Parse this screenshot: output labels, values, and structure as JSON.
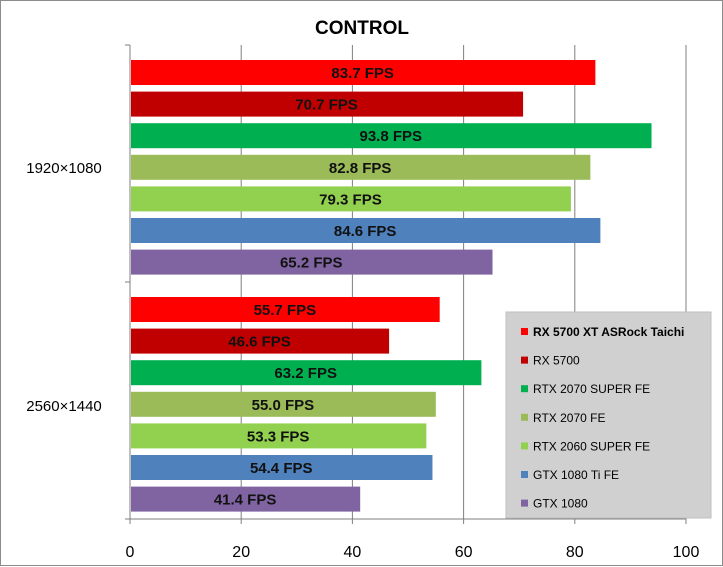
{
  "chart_data": {
    "type": "bar",
    "orientation": "horizontal",
    "title": "CONTROL",
    "categories": [
      "1920×1080",
      "2560×1440"
    ],
    "xlim": [
      0,
      100
    ],
    "x_ticks": [
      0,
      20,
      40,
      60,
      80,
      100
    ],
    "grid": "vertical",
    "legend_position": "right",
    "value_suffix": " FPS",
    "series": [
      {
        "name": "RX 5700 XT ASRock Taichi",
        "color": "#ff0000",
        "values": [
          83.7,
          55.7
        ],
        "labels": [
          "83.7 FPS",
          "55.7 FPS"
        ]
      },
      {
        "name": "RX 5700",
        "color": "#c00000",
        "values": [
          70.7,
          46.6
        ],
        "labels": [
          "70.7 FPS",
          "46.6 FPS"
        ]
      },
      {
        "name": "RTX 2070 SUPER FE",
        "color": "#00b050",
        "values": [
          93.8,
          63.2
        ],
        "labels": [
          "93.8 FPS",
          "63.2 FPS"
        ]
      },
      {
        "name": "RTX 2070 FE",
        "color": "#9bbb59",
        "values": [
          82.8,
          55.0
        ],
        "labels": [
          "82.8 FPS",
          "55.0 FPS"
        ]
      },
      {
        "name": "RTX 2060 SUPER FE",
        "color": "#92d050",
        "values": [
          79.3,
          53.3
        ],
        "labels": [
          "79.3 FPS",
          "53.3 FPS"
        ]
      },
      {
        "name": "GTX 1080 Ti FE",
        "color": "#4f81bd",
        "values": [
          84.6,
          54.4
        ],
        "labels": [
          "84.6 FPS",
          "54.4 FPS"
        ]
      },
      {
        "name": "GTX 1080",
        "color": "#8064a2",
        "values": [
          65.2,
          41.4
        ],
        "labels": [
          "65.2 FPS",
          "41.4 FPS"
        ]
      }
    ]
  }
}
